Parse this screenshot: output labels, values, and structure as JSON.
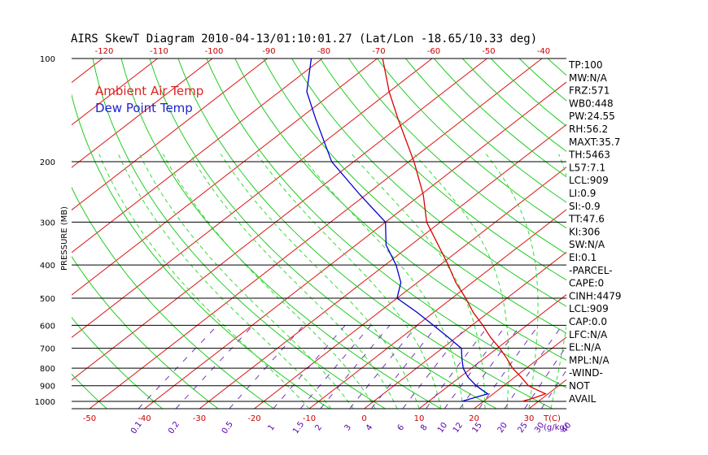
{
  "chart_data": {
    "type": "line",
    "title": "AIRS SkewT Diagram 2010-04-13/01:10:01.27 (Lat/Lon -18.65/10.33 deg)",
    "ylabel": "PRESSURE (MB)",
    "y_scale": "log",
    "ylim": [
      1050,
      100
    ],
    "xlim": [
      -50,
      40
    ],
    "pressure_ticks": [
      "100",
      "200",
      "300",
      "400",
      "500",
      "600",
      "700",
      "800",
      "900",
      "1000"
    ],
    "bottom_temp_ticks": [
      "-50",
      "-40",
      "-30",
      "-20",
      "-10",
      "0",
      "10",
      "20",
      "30"
    ],
    "bottom_temp_unit": "T(C)",
    "top_temp_ticks": [
      "-120",
      "-110",
      "-100",
      "-90",
      "-80",
      "-70",
      "-60",
      "-50",
      "-40"
    ],
    "mixing_ratio_ticks": [
      "0.1",
      "0.2",
      "0.5",
      "1",
      "1.5",
      "2",
      "3",
      "4",
      "6",
      "8",
      "10",
      "12",
      "15",
      "20",
      "25",
      "30",
      "40"
    ],
    "mixing_ratio_unit": "(g/kg)",
    "legend": {
      "entries": [
        "Ambient Air Temp",
        "Dew Point Temp"
      ],
      "placement": "top-left"
    },
    "series": [
      {
        "name": "Ambient Air Temp",
        "color": "#dd0000",
        "points": [
          {
            "p": 1000,
            "t": 27
          },
          {
            "p": 975,
            "t": 28.5
          },
          {
            "p": 950,
            "t": 29.5
          },
          {
            "p": 925,
            "t": 27
          },
          {
            "p": 900,
            "t": 24.5
          },
          {
            "p": 850,
            "t": 21.2
          },
          {
            "p": 800,
            "t": 17.5
          },
          {
            "p": 750,
            "t": 14.2
          },
          {
            "p": 700,
            "t": 10.5
          },
          {
            "p": 650,
            "t": 6.2
          },
          {
            "p": 600,
            "t": 2
          },
          {
            "p": 550,
            "t": -2.8
          },
          {
            "p": 500,
            "t": -7.5
          },
          {
            "p": 450,
            "t": -13
          },
          {
            "p": 400,
            "t": -18.5
          },
          {
            "p": 350,
            "t": -25
          },
          {
            "p": 300,
            "t": -32.5
          },
          {
            "p": 250,
            "t": -39.5
          },
          {
            "p": 200,
            "t": -49
          },
          {
            "p": 150,
            "t": -62
          },
          {
            "p": 125,
            "t": -70
          },
          {
            "p": 100,
            "t": -79
          }
        ]
      },
      {
        "name": "Dew Point Temp",
        "color": "#0000cc",
        "points": [
          {
            "p": 1000,
            "t": 16
          },
          {
            "p": 975,
            "t": 17.5
          },
          {
            "p": 950,
            "t": 19
          },
          {
            "p": 925,
            "t": 17
          },
          {
            "p": 900,
            "t": 15
          },
          {
            "p": 850,
            "t": 11.5
          },
          {
            "p": 800,
            "t": 8.5
          },
          {
            "p": 750,
            "t": 6
          },
          {
            "p": 700,
            "t": 3.5
          },
          {
            "p": 650,
            "t": -1.5
          },
          {
            "p": 600,
            "t": -7
          },
          {
            "p": 550,
            "t": -13
          },
          {
            "p": 500,
            "t": -20
          },
          {
            "p": 450,
            "t": -23
          },
          {
            "p": 400,
            "t": -28
          },
          {
            "p": 350,
            "t": -34.5
          },
          {
            "p": 300,
            "t": -40
          },
          {
            "p": 250,
            "t": -51
          },
          {
            "p": 200,
            "t": -64
          },
          {
            "p": 150,
            "t": -77
          },
          {
            "p": 125,
            "t": -85
          },
          {
            "p": 100,
            "t": -92
          }
        ]
      }
    ],
    "grid": {
      "isobars": true,
      "isotherms": true,
      "dry_adiabats": true,
      "moist_adiabats": true,
      "mixing_ratio_lines": true
    },
    "indices": [
      "TP:100",
      "MW:N/A",
      "FRZ:571",
      "WB0:448",
      "PW:24.55",
      "RH:56.2",
      "MAXT:35.7",
      "TH:5463",
      "L57:7.1",
      "LCL:909",
      "LI:0.9",
      "SI:-0.9",
      "TT:47.6",
      "KI:306",
      "SW:N/A",
      "EI:0.1",
      "-PARCEL-",
      "CAPE:0",
      "CINH:4479",
      "LCL:909",
      "CAP:0.0",
      "LFC:N/A",
      "EL:N/A",
      "MPL:N/A",
      "-WIND-",
      "NOT",
      "AVAIL"
    ]
  }
}
